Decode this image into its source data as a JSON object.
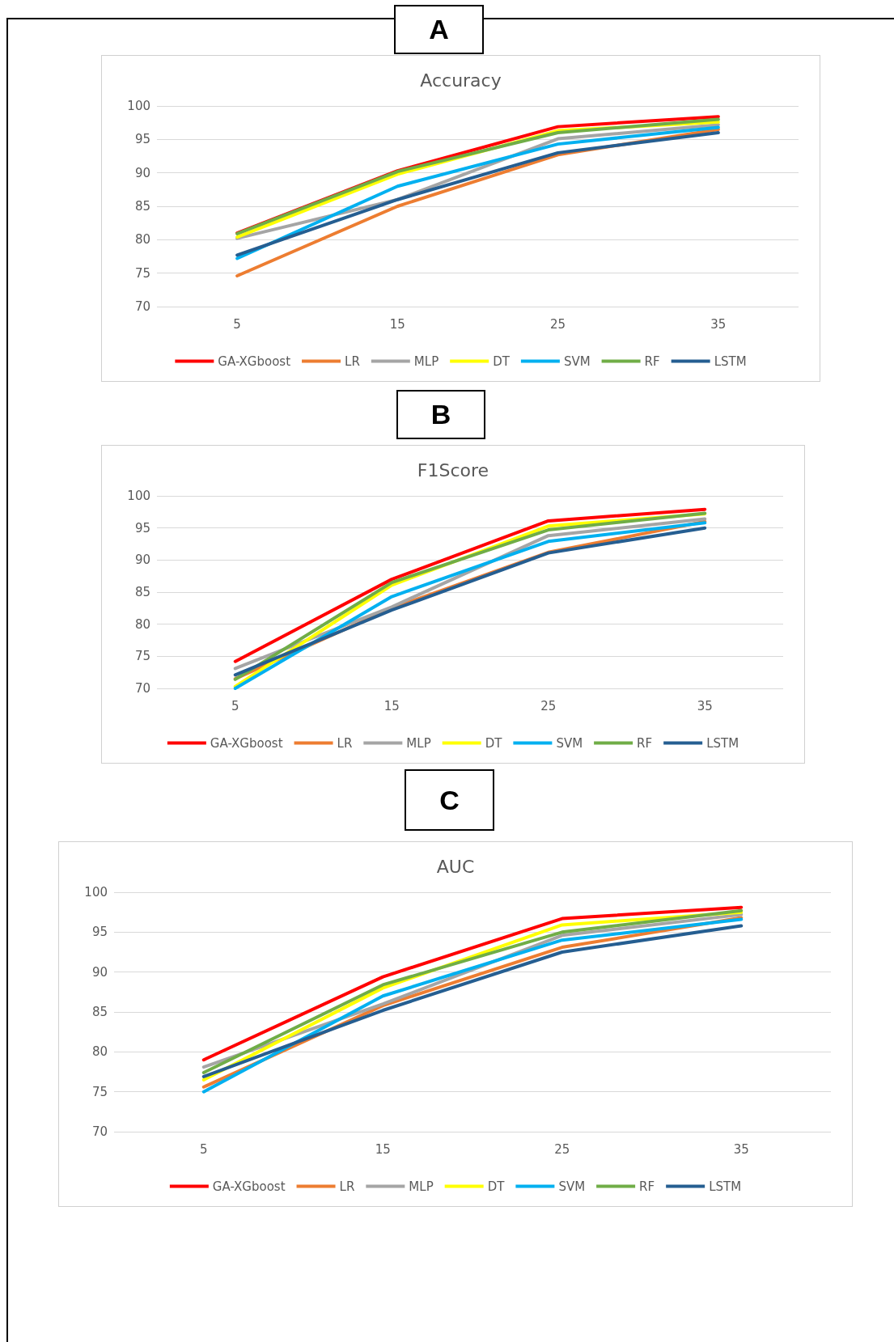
{
  "chart_data": [
    {
      "type": "line",
      "title": "Accuracy",
      "annotations": [
        "A"
      ],
      "categories": [
        "5",
        "15",
        "25",
        "35"
      ],
      "ylim": [
        70,
        100
      ],
      "yticks": [
        70,
        75,
        80,
        85,
        90,
        95,
        100
      ],
      "grid": "y",
      "legend": "bottom",
      "series": [
        {
          "name": "GA-XGboost",
          "color": "#ff0000",
          "values": [
            81,
            90.3,
            96.9,
            98.4
          ]
        },
        {
          "name": "LR",
          "color": "#ed7d31",
          "values": [
            74.6,
            85,
            92.7,
            96.5
          ]
        },
        {
          "name": "MLP",
          "color": "#a5a5a5",
          "values": [
            80.2,
            86,
            95.1,
            97.2
          ]
        },
        {
          "name": "DT",
          "color": "#ffff00",
          "values": [
            80.4,
            89.8,
            96.3,
            97.6
          ]
        },
        {
          "name": "SVM",
          "color": "#00b0f0",
          "values": [
            77.2,
            88,
            94.3,
            96.8
          ]
        },
        {
          "name": "RF",
          "color": "#70ad47",
          "values": [
            80.9,
            90.2,
            96,
            98
          ]
        },
        {
          "name": "LSTM",
          "color": "#255e91",
          "values": [
            77.7,
            86,
            93,
            96
          ]
        }
      ]
    },
    {
      "type": "line",
      "title": "F1Score",
      "annotations": [
        "B"
      ],
      "categories": [
        "5",
        "15",
        "25",
        "35"
      ],
      "ylim": [
        70,
        100
      ],
      "yticks": [
        70,
        75,
        80,
        85,
        90,
        95,
        100
      ],
      "grid": "y",
      "legend": "bottom",
      "series": [
        {
          "name": "GA-XGboost",
          "color": "#ff0000",
          "values": [
            74.2,
            87,
            96.1,
            97.9
          ]
        },
        {
          "name": "LR",
          "color": "#ed7d31",
          "values": [
            71.5,
            82.5,
            91.2,
            96
          ]
        },
        {
          "name": "MLP",
          "color": "#a5a5a5",
          "values": [
            73.1,
            82.7,
            93.8,
            96.4
          ]
        },
        {
          "name": "DT",
          "color": "#ffff00",
          "values": [
            70.3,
            86.1,
            95.3,
            97.2
          ]
        },
        {
          "name": "SVM",
          "color": "#00b0f0",
          "values": [
            70,
            84.3,
            92.9,
            95.8
          ]
        },
        {
          "name": "RF",
          "color": "#70ad47",
          "values": [
            71.4,
            86.5,
            94.7,
            97.3
          ]
        },
        {
          "name": "LSTM",
          "color": "#255e91",
          "values": [
            72.1,
            82.2,
            91.1,
            95
          ]
        }
      ]
    },
    {
      "type": "line",
      "title": "AUC",
      "annotations": [
        "C"
      ],
      "categories": [
        "5",
        "15",
        "25",
        "35"
      ],
      "ylim": [
        70,
        100
      ],
      "yticks": [
        70,
        75,
        80,
        85,
        90,
        95,
        100
      ],
      "grid": "y",
      "legend": "bottom",
      "series": [
        {
          "name": "GA-XGboost",
          "color": "#ff0000",
          "values": [
            79,
            89.4,
            96.7,
            98.1
          ]
        },
        {
          "name": "LR",
          "color": "#ed7d31",
          "values": [
            75.6,
            85.8,
            93.1,
            96.8
          ]
        },
        {
          "name": "MLP",
          "color": "#a5a5a5",
          "values": [
            78.1,
            86,
            94.6,
            97.2
          ]
        },
        {
          "name": "DT",
          "color": "#ffff00",
          "values": [
            76.5,
            88,
            95.9,
            97.5
          ]
        },
        {
          "name": "SVM",
          "color": "#00b0f0",
          "values": [
            75,
            87,
            94,
            96.6
          ]
        },
        {
          "name": "RF",
          "color": "#70ad47",
          "values": [
            77.4,
            88.4,
            95,
            97.7
          ]
        },
        {
          "name": "LSTM",
          "color": "#255e91",
          "values": [
            76.9,
            85.2,
            92.5,
            95.8
          ]
        }
      ]
    }
  ]
}
